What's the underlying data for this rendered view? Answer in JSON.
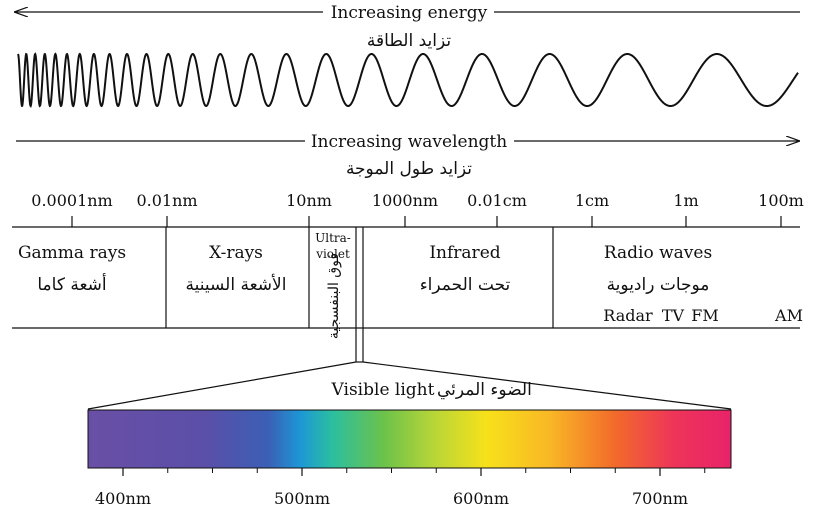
{
  "energy": {
    "label": "Increasing energy",
    "label_ar": "تزايد الطاقة"
  },
  "wavelength": {
    "label": "Increasing wavelength",
    "label_ar": "تزايد طول الموجة"
  },
  "scale_ticks": [
    "0.0001nm",
    "0.01nm",
    "10nm",
    "1000nm",
    "0.01cm",
    "1cm",
    "1m",
    "100m"
  ],
  "bands": {
    "gamma": {
      "en": "Gamma rays",
      "ar": "أشعة كاما"
    },
    "xray": {
      "en": "X-rays",
      "ar": "الأشعة السينية"
    },
    "uv": {
      "en1": "Ultra-",
      "en2": "violet",
      "ar": "فوق البنفسجية"
    },
    "infrared": {
      "en": "Infrared",
      "ar": "تحت الحمراء"
    },
    "radio": {
      "en": "Radio waves",
      "ar": "موجات راديوية",
      "sub": [
        "Radar",
        "TV",
        "FM",
        "AM"
      ]
    }
  },
  "visible": {
    "en": "Visible light",
    "ar": "الضوء المرئي"
  },
  "spectrum_ticks": [
    "400nm",
    "500nm",
    "600nm",
    "700nm"
  ],
  "colors": {
    "ink": "#111111",
    "violet": "#6a4fa6",
    "blue": "#2c8fd0",
    "green": "#7fc446",
    "yellow": "#f7e11a",
    "orange": "#f08a2a",
    "red": "#e8236a"
  }
}
